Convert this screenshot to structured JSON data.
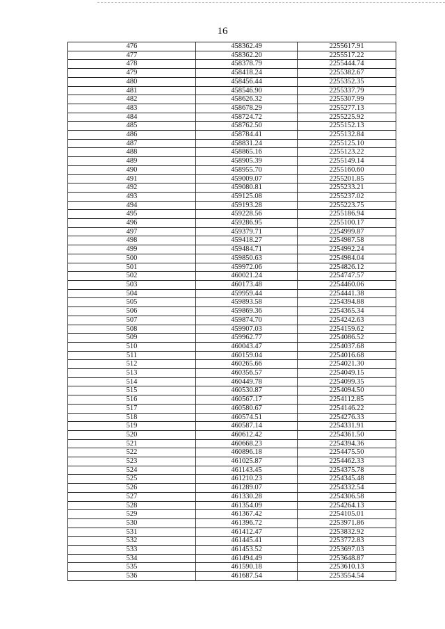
{
  "page_number": "16",
  "table": {
    "rows": [
      [
        "476",
        "458362.49",
        "2255617.91"
      ],
      [
        "477",
        "458362.20",
        "2255517.22"
      ],
      [
        "478",
        "458378.79",
        "2255444.74"
      ],
      [
        "479",
        "458418.24",
        "2255382.67"
      ],
      [
        "480",
        "458456.44",
        "2255352.35"
      ],
      [
        "481",
        "458546.90",
        "2255337.79"
      ],
      [
        "482",
        "458626.32",
        "2255307.99"
      ],
      [
        "483",
        "458678.29",
        "2255277.13"
      ],
      [
        "484",
        "458724.72",
        "2255225.92"
      ],
      [
        "485",
        "458762.50",
        "2255152.13"
      ],
      [
        "486",
        "458784.41",
        "2255132.84"
      ],
      [
        "487",
        "458831.24",
        "2255125.10"
      ],
      [
        "488",
        "458865.16",
        "2255123.22"
      ],
      [
        "489",
        "458905.39",
        "2255149.14"
      ],
      [
        "490",
        "458955.70",
        "2255160.60"
      ],
      [
        "491",
        "459009.07",
        "2255201.85"
      ],
      [
        "492",
        "459080.81",
        "2255233.21"
      ],
      [
        "493",
        "459125.08",
        "2255237.02"
      ],
      [
        "494",
        "459193.28",
        "2255223.75"
      ],
      [
        "495",
        "459228.56",
        "2255186.94"
      ],
      [
        "496",
        "459286.95",
        "2255100.17"
      ],
      [
        "497",
        "459379.71",
        "2254999.87"
      ],
      [
        "498",
        "459418.27",
        "2254987.58"
      ],
      [
        "499",
        "459484.71",
        "2254992.24"
      ],
      [
        "500",
        "459850.63",
        "2254984.04"
      ],
      [
        "501",
        "459972.06",
        "2254826.12"
      ],
      [
        "502",
        "460021.24",
        "2254747.57"
      ],
      [
        "503",
        "460173.48",
        "2254460.06"
      ],
      [
        "504",
        "459959.44",
        "2254441.38"
      ],
      [
        "505",
        "459893.58",
        "2254394.88"
      ],
      [
        "506",
        "459869.36",
        "2254365.34"
      ],
      [
        "507",
        "459874.70",
        "2254242.63"
      ],
      [
        "508",
        "459907.03",
        "2254159.62"
      ],
      [
        "509",
        "459962.77",
        "2254086.52"
      ],
      [
        "510",
        "460043.47",
        "2254037.68"
      ],
      [
        "511",
        "460159.04",
        "2254016.68"
      ],
      [
        "512",
        "460265.66",
        "2254021.30"
      ],
      [
        "513",
        "460356.57",
        "2254049.15"
      ],
      [
        "514",
        "460449.78",
        "2254099.35"
      ],
      [
        "515",
        "460530.87",
        "2254094.50"
      ],
      [
        "516",
        "460567.17",
        "2254112.85"
      ],
      [
        "517",
        "460580.67",
        "2254146.22"
      ],
      [
        "518",
        "460574.51",
        "2254276.33"
      ],
      [
        "519",
        "460587.14",
        "2254331.91"
      ],
      [
        "520",
        "460612.42",
        "2254361.50"
      ],
      [
        "521",
        "460668.23",
        "2254394.36"
      ],
      [
        "522",
        "460896.18",
        "2254475.50"
      ],
      [
        "523",
        "461025.87",
        "2254462.33"
      ],
      [
        "524",
        "461143.45",
        "2254375.78"
      ],
      [
        "525",
        "461210.23",
        "2254345.48"
      ],
      [
        "526",
        "461289.07",
        "2254332.54"
      ],
      [
        "527",
        "461330.28",
        "2254306.58"
      ],
      [
        "528",
        "461354.09",
        "2254264.13"
      ],
      [
        "529",
        "461367.42",
        "2254105.01"
      ],
      [
        "530",
        "461396.72",
        "2253971.86"
      ],
      [
        "531",
        "461412.47",
        "2253832.92"
      ],
      [
        "532",
        "461445.41",
        "2253772.83"
      ],
      [
        "533",
        "461453.52",
        "2253697.03"
      ],
      [
        "534",
        "461494.49",
        "2253648.87"
      ],
      [
        "535",
        "461590.18",
        "2253610.13"
      ],
      [
        "536",
        "461687.54",
        "2253554.54"
      ]
    ]
  }
}
